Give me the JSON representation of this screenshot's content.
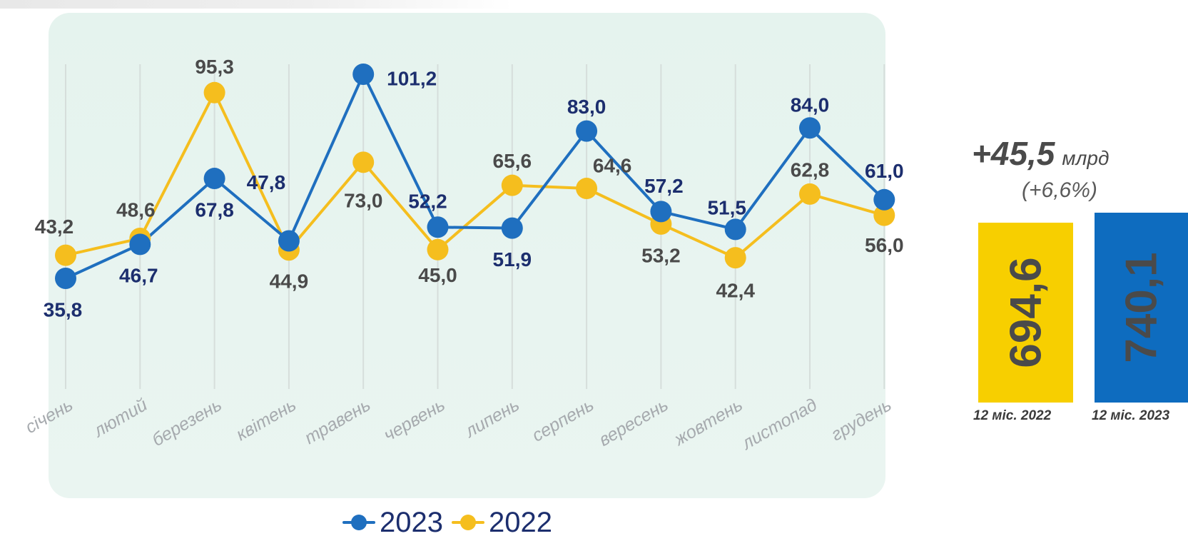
{
  "chart_data": [
    {
      "type": "line",
      "categories": [
        "січень",
        "лютий",
        "березень",
        "квітень",
        "травень",
        "червень",
        "липень",
        "серпень",
        "вересень",
        "жовтень",
        "листопад",
        "грудень"
      ],
      "series": [
        {
          "name": "2023",
          "color": "#1f6fbf",
          "values": [
            35.8,
            46.7,
            67.8,
            47.8,
            101.2,
            52.2,
            51.9,
            83.0,
            57.2,
            51.5,
            84.0,
            61.0
          ],
          "labels": [
            "35,8",
            "46,7",
            "67,8",
            "47,8",
            "101,2",
            "52,2",
            "51,9",
            "83,0",
            "57,2",
            "51,5",
            "84,0",
            "61,0"
          ]
        },
        {
          "name": "2022",
          "color": "#f5be1e",
          "values": [
            43.2,
            48.6,
            95.3,
            44.9,
            73.0,
            45.0,
            65.6,
            64.6,
            53.2,
            42.4,
            62.8,
            56.0
          ],
          "labels": [
            "43,2",
            "48,6",
            "95,3",
            "44,9",
            "73,0",
            "45,0",
            "65,6",
            "64,6",
            "53,2",
            "42,4",
            "62,8",
            "56,0"
          ]
        }
      ],
      "grid": "vertical",
      "legend": "bottom-center"
    },
    {
      "type": "bar",
      "categories": [
        "12 міс. 2022",
        "12 міс. 2023"
      ],
      "values": [
        694.6,
        740.1
      ],
      "labels": [
        "694,6",
        "740,1"
      ],
      "colors": [
        "#f7cf00",
        "#0e6cbf"
      ],
      "annotation": {
        "value": "+45,5",
        "unit": "млрд",
        "percent": "(+6,6%)"
      }
    }
  ],
  "colors": {
    "series_2023": "#1f6fbf",
    "series_2022": "#f5be1e",
    "label_2023": "#1c2e6e",
    "label_2022": "#4a4a4a",
    "panel": "#e5f3ee"
  }
}
